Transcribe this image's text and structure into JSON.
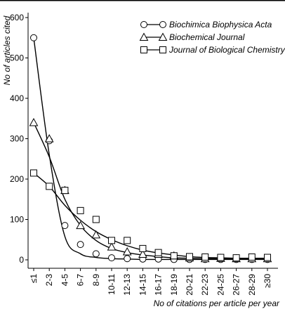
{
  "chart_data": {
    "type": "line",
    "title": "",
    "xlabel": "No of citations per article per year",
    "ylabel": "No of articles cited",
    "ylim": [
      0,
      600
    ],
    "yticks": [
      0,
      100,
      200,
      300,
      400,
      500,
      600
    ],
    "grid": false,
    "legend_position": "top-right",
    "categories": [
      "≤1",
      "2-3",
      "4-5",
      "6-7",
      "8-9",
      "10-11",
      "12-13",
      "14-15",
      "16-17",
      "18-19",
      "20-21",
      "22-23",
      "24-25",
      "26-27",
      "28-29",
      "≥30"
    ],
    "series": [
      {
        "name": "Biochimica Biophysica Acta",
        "marker": "circle",
        "values": [
          550,
          295,
          85,
          38,
          15,
          5,
          3,
          2,
          2,
          1,
          1,
          1,
          1,
          1,
          1,
          1
        ],
        "fit": [
          550,
          260,
          58,
          15,
          6,
          3,
          2,
          1,
          1,
          1,
          1,
          1,
          1,
          1,
          1,
          1
        ]
      },
      {
        "name": "Biochemical Journal",
        "marker": "triangle",
        "values": [
          340,
          300,
          172,
          85,
          62,
          32,
          20,
          14,
          14,
          10,
          5,
          3,
          4,
          3,
          3,
          3
        ],
        "fit": [
          340,
          255,
          150,
          85,
          48,
          28,
          18,
          12,
          8,
          5,
          4,
          3,
          3,
          3,
          3,
          3
        ]
      },
      {
        "name": "Journal of Biological Chemistry",
        "marker": "square",
        "values": [
          215,
          182,
          172,
          122,
          100,
          48,
          48,
          28,
          18,
          10,
          8,
          7,
          6,
          5,
          7,
          6
        ],
        "fit": [
          215,
          182,
          135,
          98,
          70,
          50,
          35,
          24,
          17,
          12,
          8,
          6,
          5,
          4,
          4,
          4
        ]
      }
    ]
  }
}
